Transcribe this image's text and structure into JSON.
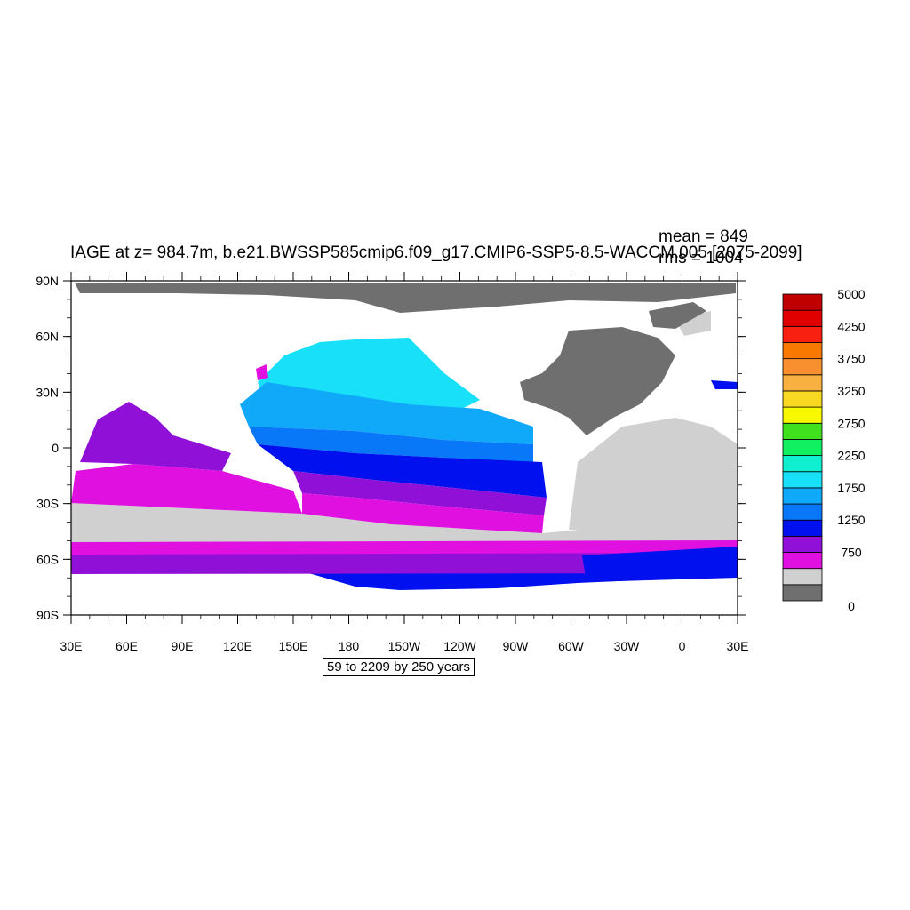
{
  "title": "IAGE at z= 984.7m, b.e21.BWSSP585cmip6.f09_g17.CMIP6-SSP5-8.5-WACCM.005 [2075-2099]",
  "stats": {
    "mean": "mean = 849",
    "rms": "rms = 1004"
  },
  "contour_interval": "59 to 2209 by 250 years",
  "axes": {
    "lat_labels": [
      "90N",
      "60N",
      "30N",
      "0",
      "30S",
      "60S",
      "90S"
    ],
    "lon_labels": [
      "30E",
      "60E",
      "90E",
      "120E",
      "150E",
      "180",
      "150W",
      "120W",
      "90W",
      "60W",
      "30W",
      "0",
      "30E"
    ]
  },
  "colorbar": {
    "colors": [
      "#6f6f6f",
      "#d0d0d0",
      "#e010e0",
      "#9010d8",
      "#0010ee",
      "#0878f8",
      "#10a8f8",
      "#18e0f8",
      "#10f0d0",
      "#10f060",
      "#40e020",
      "#f8f800",
      "#f8d820",
      "#f8b040",
      "#f89030",
      "#f87800",
      "#f82010",
      "#e00000",
      "#c00000"
    ],
    "tick_labels": [
      "0",
      "750",
      "1250",
      "1750",
      "2250",
      "2750",
      "3250",
      "3750",
      "4250",
      "5000"
    ]
  },
  "colors": {
    "land": "#6f6f6f",
    "missing": "#ffffff"
  }
}
